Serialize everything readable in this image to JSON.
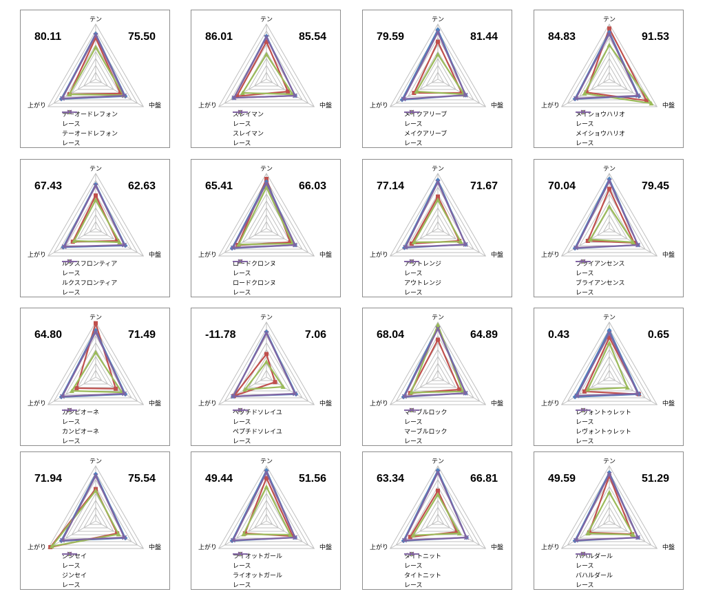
{
  "axis_labels": {
    "top": "テン",
    "left": "上がり",
    "right": "中盤"
  },
  "colors": {
    "horse": "#c0504d",
    "race": "#4f81bd",
    "horse2": "#9bbb59",
    "race2": "#8064a2",
    "grid": "#bfbfbf"
  },
  "chart_data": [
    {
      "type": "radar",
      "axes": [
        "テン",
        "中盤",
        "上がり"
      ],
      "score_left": "80.11",
      "score_right": "75.50",
      "rmax": 100,
      "series": [
        {
          "name": "テーオードレフォン",
          "values": [
            75,
            52,
            55
          ]
        },
        {
          "name": "レース",
          "values": [
            82,
            62,
            72
          ]
        },
        {
          "name": "テーオードレフォン",
          "values": [
            58,
            58,
            55
          ]
        },
        {
          "name": "レース",
          "values": [
            80,
            60,
            70
          ]
        }
      ]
    },
    {
      "type": "radar",
      "axes": [
        "テン",
        "中盤",
        "上がり"
      ],
      "score_left": "86.01",
      "score_right": "85.54",
      "rmax": 100,
      "series": [
        {
          "name": "スレイマン",
          "values": [
            68,
            45,
            62
          ]
        },
        {
          "name": "レース",
          "values": [
            78,
            60,
            68
          ]
        },
        {
          "name": "スレイマン",
          "values": [
            45,
            55,
            50
          ]
        },
        {
          "name": "レース",
          "values": [
            76,
            60,
            68
          ]
        }
      ]
    },
    {
      "type": "radar",
      "axes": [
        "テン",
        "中盤",
        "上がり"
      ],
      "score_left": "79.59",
      "score_right": "81.44",
      "rmax": 100,
      "series": [
        {
          "name": "メイクアリーブ",
          "values": [
            68,
            50,
            50
          ]
        },
        {
          "name": "レース",
          "values": [
            90,
            58,
            75
          ]
        },
        {
          "name": "メイクアリーブ",
          "values": [
            45,
            55,
            45
          ]
        },
        {
          "name": "レース",
          "values": [
            85,
            58,
            72
          ]
        }
      ]
    },
    {
      "type": "radar",
      "axes": [
        "テン",
        "中盤",
        "上がり"
      ],
      "score_left": "84.83",
      "score_right": "91.53",
      "rmax": 100,
      "series": [
        {
          "name": "メイショウハリオ",
          "values": [
            92,
            78,
            48
          ]
        },
        {
          "name": "レース",
          "values": [
            85,
            62,
            72
          ]
        },
        {
          "name": "メイショウハリオ",
          "values": [
            62,
            88,
            52
          ]
        },
        {
          "name": "レース",
          "values": [
            82,
            60,
            70
          ]
        }
      ]
    },
    {
      "type": "radar",
      "axes": [
        "テン",
        "中盤",
        "上がり"
      ],
      "score_left": "67.43",
      "score_right": "62.63",
      "rmax": 100,
      "series": [
        {
          "name": "ルクスフロンティア",
          "values": [
            60,
            45,
            48
          ]
        },
        {
          "name": "レース",
          "values": [
            80,
            62,
            68
          ]
        },
        {
          "name": "ルクスフロンティア",
          "values": [
            52,
            50,
            45
          ]
        },
        {
          "name": "レース",
          "values": [
            78,
            60,
            66
          ]
        }
      ]
    },
    {
      "type": "radar",
      "axes": [
        "テン",
        "中盤",
        "上がり"
      ],
      "score_left": "65.41",
      "score_right": "66.03",
      "rmax": 100,
      "series": [
        {
          "name": "ロードクロンヌ",
          "values": [
            90,
            50,
            60
          ]
        },
        {
          "name": "レース",
          "values": [
            85,
            60,
            72
          ]
        },
        {
          "name": "ロードクロンヌ",
          "values": [
            75,
            55,
            58
          ]
        },
        {
          "name": "レース",
          "values": [
            82,
            60,
            70
          ]
        }
      ]
    },
    {
      "type": "radar",
      "axes": [
        "テン",
        "中盤",
        "上がり"
      ],
      "score_left": "77.14",
      "score_right": "71.67",
      "rmax": 100,
      "series": [
        {
          "name": "アウトレンジ",
          "values": [
            58,
            45,
            55
          ]
        },
        {
          "name": "レース",
          "values": [
            88,
            58,
            70
          ]
        },
        {
          "name": "アウトレンジ",
          "values": [
            52,
            48,
            50
          ]
        },
        {
          "name": "レース",
          "values": [
            84,
            58,
            68
          ]
        }
      ]
    },
    {
      "type": "radar",
      "axes": [
        "テン",
        "中盤",
        "上がり"
      ],
      "score_left": "70.04",
      "score_right": "79.45",
      "rmax": 100,
      "series": [
        {
          "name": "ブライアンセンス",
          "values": [
            72,
            52,
            45
          ]
        },
        {
          "name": "レース",
          "values": [
            90,
            60,
            72
          ]
        },
        {
          "name": "ブライアンセンス",
          "values": [
            40,
            50,
            40
          ]
        },
        {
          "name": "レース",
          "values": [
            86,
            60,
            70
          ]
        }
      ]
    },
    {
      "type": "radar",
      "axes": [
        "テン",
        "中盤",
        "上がり"
      ],
      "score_left": "64.80",
      "score_right": "71.49",
      "rmax": 100,
      "series": [
        {
          "name": "カンピオーネ",
          "values": [
            98,
            42,
            40
          ]
        },
        {
          "name": "レース",
          "values": [
            85,
            62,
            72
          ]
        },
        {
          "name": "カンピオーネ",
          "values": [
            45,
            55,
            50
          ]
        },
        {
          "name": "レース",
          "values": [
            82,
            60,
            70
          ]
        }
      ]
    },
    {
      "type": "radar",
      "axes": [
        "テン",
        "中盤",
        "上がり"
      ],
      "score_left": "-11.78",
      "score_right": "7.06",
      "rmax": 100,
      "series": [
        {
          "name": "ペプチドソレイユ",
          "values": [
            42,
            18,
            68
          ]
        },
        {
          "name": "レース",
          "values": [
            82,
            62,
            70
          ]
        },
        {
          "name": "ペプチドソレイユ",
          "values": [
            28,
            35,
            45
          ]
        },
        {
          "name": "レース",
          "values": [
            80,
            60,
            70
          ]
        }
      ]
    },
    {
      "type": "radar",
      "axes": [
        "テン",
        "中盤",
        "上がり"
      ],
      "score_left": "68.04",
      "score_right": "64.89",
      "rmax": 100,
      "series": [
        {
          "name": "マーブルロック",
          "values": [
            68,
            45,
            58
          ]
        },
        {
          "name": "レース",
          "values": [
            92,
            58,
            72
          ]
        },
        {
          "name": "マーブルロック",
          "values": [
            95,
            52,
            56
          ]
        },
        {
          "name": "レース",
          "values": [
            88,
            58,
            70
          ]
        }
      ]
    },
    {
      "type": "radar",
      "axes": [
        "テン",
        "中盤",
        "上がり"
      ],
      "score_left": "0.43",
      "score_right": "0.65",
      "rmax": 100,
      "series": [
        {
          "name": "レヴォントゥレット",
          "values": [
            72,
            62,
            52
          ]
        },
        {
          "name": "レース",
          "values": [
            85,
            62,
            72
          ]
        },
        {
          "name": "レヴォントゥレット",
          "values": [
            62,
            38,
            45
          ]
        },
        {
          "name": "レース",
          "values": [
            80,
            60,
            68
          ]
        }
      ]
    },
    {
      "type": "radar",
      "axes": [
        "テン",
        "中盤",
        "上がり"
      ],
      "score_left": "71.94",
      "score_right": "75.54",
      "rmax": 100,
      "series": [
        {
          "name": "ジンセイ",
          "values": [
            58,
            45,
            95
          ]
        },
        {
          "name": "レース",
          "values": [
            85,
            62,
            72
          ]
        },
        {
          "name": "ジンセイ",
          "values": [
            55,
            48,
            92
          ]
        },
        {
          "name": "レース",
          "values": [
            82,
            60,
            70
          ]
        }
      ]
    },
    {
      "type": "radar",
      "axes": [
        "テン",
        "中盤",
        "上がり"
      ],
      "score_left": "49.44",
      "score_right": "51.56",
      "rmax": 100,
      "series": [
        {
          "name": "ライオットガール",
          "values": [
            78,
            55,
            45
          ]
        },
        {
          "name": "レース",
          "values": [
            92,
            60,
            72
          ]
        },
        {
          "name": "ライオットガール",
          "values": [
            62,
            50,
            48
          ]
        },
        {
          "name": "レース",
          "values": [
            88,
            60,
            70
          ]
        }
      ]
    },
    {
      "type": "radar",
      "axes": [
        "テン",
        "中盤",
        "上がり"
      ],
      "score_left": "63.34",
      "score_right": "66.81",
      "rmax": 100,
      "series": [
        {
          "name": "タイトニット",
          "values": [
            55,
            40,
            58
          ]
        },
        {
          "name": "レース",
          "values": [
            92,
            60,
            72
          ]
        },
        {
          "name": "タイトニット",
          "values": [
            48,
            45,
            52
          ]
        },
        {
          "name": "レース",
          "values": [
            88,
            60,
            70
          ]
        }
      ]
    },
    {
      "type": "radar",
      "axes": [
        "テン",
        "中盤",
        "上がり"
      ],
      "score_left": "49.59",
      "score_right": "51.29",
      "rmax": 100,
      "series": [
        {
          "name": "バハルダール",
          "values": [
            82,
            48,
            42
          ]
        },
        {
          "name": "レース",
          "values": [
            88,
            60,
            72
          ]
        },
        {
          "name": "バハルダール",
          "values": [
            52,
            50,
            45
          ]
        },
        {
          "name": "レース",
          "values": [
            85,
            60,
            70
          ]
        }
      ]
    }
  ]
}
